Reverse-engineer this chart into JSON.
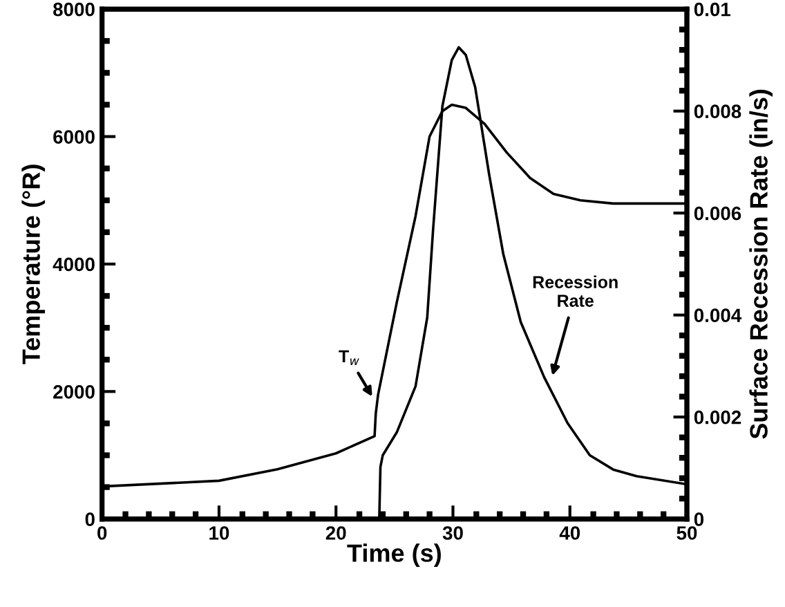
{
  "chart_data": {
    "type": "line",
    "xlabel": "Time (s)",
    "ylabel": "Temperature (°R)",
    "y2label": "Surface Recession Rate (in/s)",
    "xlim": [
      0,
      50
    ],
    "xticks": [
      0,
      10,
      20,
      30,
      40,
      50
    ],
    "ylim": [
      0,
      8000
    ],
    "yticks": [
      0,
      2000,
      4000,
      6000,
      8000
    ],
    "y2lim": [
      0,
      0.01
    ],
    "y2ticks": [
      0,
      0.002,
      0.004,
      0.006,
      0.008,
      0.01
    ],
    "grid": false,
    "legend": false,
    "marker": "none",
    "line_style": "solid",
    "series": [
      {
        "color": "#000000",
        "x": [
          0,
          10,
          15,
          20,
          23.3,
          23.4,
          23.6,
          25.2,
          26.8,
          28,
          29.1,
          29.9,
          31.1,
          32.7,
          34.6,
          36.6,
          38.6,
          40.9,
          43.7,
          50
        ],
        "values": [
          510,
          600,
          780,
          1030,
          1300,
          1650,
          1950,
          3400,
          4750,
          6000,
          6400,
          6500,
          6450,
          6200,
          5750,
          5350,
          5100,
          5000,
          4950,
          4950
        ]
      },
      {
        "color": "#000000",
        "axis": "y2",
        "x": [
          0,
          23.7,
          23.8,
          24,
          25.2,
          26.8,
          27.8,
          28.3,
          29.1,
          29.9,
          30.5,
          31.1,
          31.9,
          33.1,
          34.3,
          35.8,
          37.8,
          39.8,
          41.7,
          43.7,
          45.7,
          50
        ],
        "values": [
          0,
          0,
          0.00102,
          0.00125,
          0.0017,
          0.0026,
          0.00395,
          0.00567,
          0.0081,
          0.009,
          0.00925,
          0.0091,
          0.00847,
          0.00675,
          0.0052,
          0.00386,
          0.00278,
          0.00188,
          0.00125,
          0.00097,
          0.00084,
          0.00068
        ]
      }
    ],
    "annotations": [
      {
        "text": "T$_{w}$",
        "x": 23.1,
        "y": 1920
      },
      {
        "text": "Recession\nRate",
        "x": 38.5,
        "y": 2250
      }
    ]
  }
}
